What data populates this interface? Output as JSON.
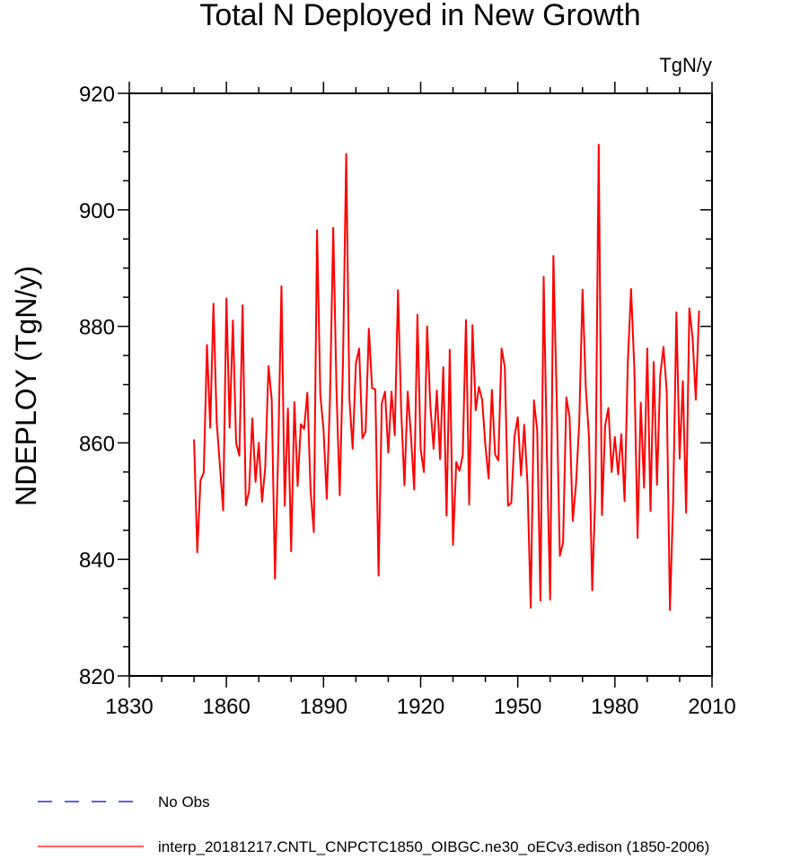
{
  "chart_data": {
    "type": "line",
    "title": "Total N Deployed in New Growth",
    "units": "TgN/y",
    "xlabel": "",
    "ylabel": "NDEPLOY  (TgN/y)",
    "xlim": [
      1830,
      2010
    ],
    "ylim": [
      820,
      920
    ],
    "xticks": [
      1830,
      1860,
      1890,
      1920,
      1950,
      1980,
      2010
    ],
    "yticks": [
      820,
      840,
      860,
      880,
      900,
      920
    ],
    "x_minor_step": 10,
    "y_minor_step": 5,
    "grid": false,
    "series": [
      {
        "name": "interp_20181217.CNTL_CNPCTC1850_OIBGC.ne30_oECv3.edison (1850-2006)",
        "color": "#ff0000",
        "style": "solid",
        "x_start": 1850,
        "x_step": 1,
        "values": [
          860.6,
          841.2,
          853.6,
          854.9,
          876.8,
          862.6,
          883.9,
          863.6,
          856.0,
          848.4,
          884.8,
          862.6,
          881.0,
          860.0,
          857.8,
          883.6,
          849.3,
          851.7,
          864.2,
          853.3,
          860.0,
          849.9,
          855.8,
          873.2,
          867.4,
          836.7,
          858.5,
          886.9,
          849.2,
          865.9,
          841.4,
          867.0,
          852.6,
          863.2,
          862.4,
          868.6,
          851.8,
          844.7,
          896.5,
          868.3,
          862.3,
          850.4,
          867.8,
          896.9,
          869.1,
          851.0,
          873.6,
          909.6,
          867.4,
          859.0,
          873.6,
          876.2,
          860.8,
          861.9,
          879.6,
          869.4,
          869.2,
          837.2,
          866.8,
          868.8,
          858.3,
          868.8,
          861.3,
          886.2,
          865.4,
          852.7,
          868.8,
          861.3,
          852.0,
          882.0,
          858.9,
          855.0,
          880.0,
          866.3,
          859.0,
          869.0,
          857.2,
          873.0,
          847.5,
          876.0,
          842.5,
          856.7,
          855.2,
          857.8,
          881.1,
          849.4,
          880.2,
          865.6,
          869.6,
          867.4,
          859.5,
          853.9,
          869.1,
          858.0,
          857.0,
          876.2,
          873.0,
          849.2,
          849.7,
          861.1,
          864.4,
          854.4,
          863.1,
          853.0,
          831.7,
          867.3,
          862.2,
          832.9,
          888.5,
          858.0,
          833.1,
          892.1,
          868.0,
          840.6,
          842.9,
          867.8,
          864.4,
          846.6,
          853.0,
          863.6,
          886.3,
          869.6,
          861.0,
          834.7,
          852.1,
          911.2,
          847.6,
          863.0,
          866.0,
          855.0,
          861.0,
          854.6,
          861.5,
          850.0,
          874.0,
          886.4,
          872.8,
          843.7,
          866.9,
          852.3,
          876.2,
          848.3,
          873.9,
          852.8,
          871.5,
          876.5,
          869.0,
          831.3,
          849.9,
          882.4,
          857.3,
          870.6,
          848.0,
          883.1,
          878.0,
          867.4,
          882.7
        ]
      }
    ],
    "legend": {
      "placement": "bottom-left",
      "entries": [
        {
          "label": "No Obs",
          "color": "#0000cc",
          "style": "dashed"
        },
        {
          "label": "interp_20181217.CNTL_CNPCTC1850_OIBGC.ne30_oECv3.edison (1850-2006)",
          "color": "#ff0000",
          "style": "solid"
        }
      ]
    }
  }
}
